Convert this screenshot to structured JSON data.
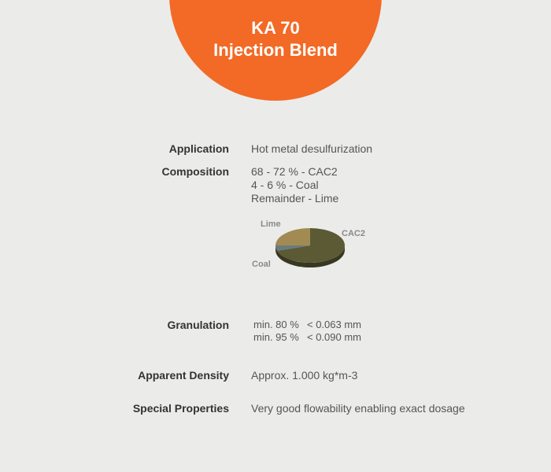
{
  "header": {
    "title_line1": "KA 70",
    "title_line2": "Injection Blend",
    "accent_color": "#f26a25"
  },
  "specs": {
    "application": {
      "label": "Application",
      "value": "Hot metal desulfurization"
    },
    "composition": {
      "label": "Composition",
      "lines": [
        "68 - 72 %  - CAC2",
        "4 - 6 % - Coal",
        "Remainder - Lime"
      ]
    },
    "granulation": {
      "label": "Granulation",
      "rows": [
        {
          "pct": "min. 80 %",
          "size": "< 0.063 mm"
        },
        {
          "pct": "min. 95 %",
          "size": "< 0.090 mm"
        }
      ]
    },
    "density": {
      "label": "Apparent Density",
      "value": "Approx. 1.000 kg*m-3"
    },
    "special": {
      "label": "Special Properties",
      "value": "Very good flowability enabling exact dosage"
    }
  },
  "pie": {
    "slices": [
      {
        "name": "CAC2",
        "value": 70,
        "color": "#5b5a35"
      },
      {
        "name": "Coal",
        "value": 5,
        "color": "#6a7a80"
      },
      {
        "name": "Lime",
        "value": 25,
        "color": "#a28b52"
      }
    ]
  }
}
